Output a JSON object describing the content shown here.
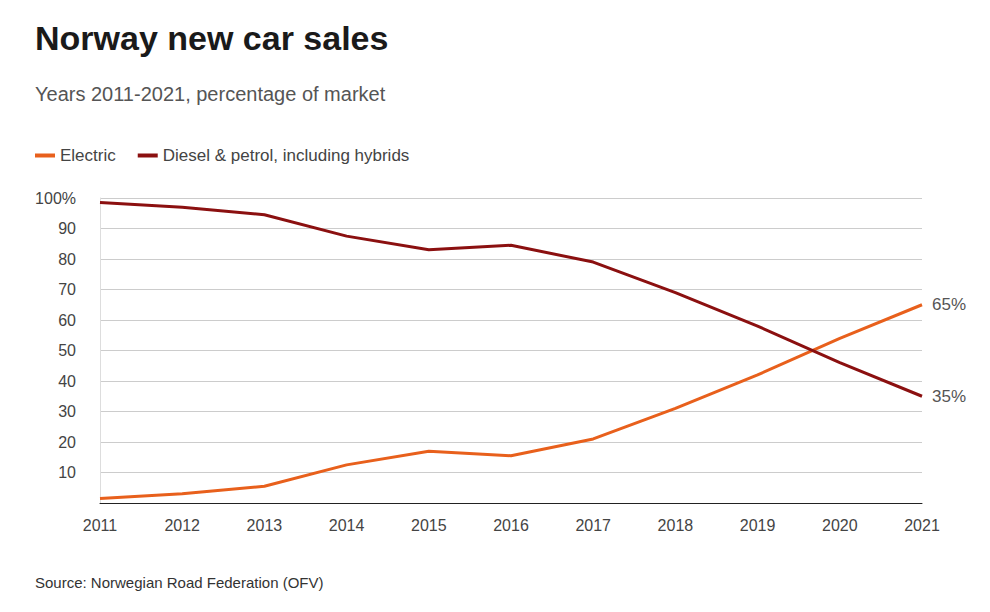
{
  "chart_data": {
    "type": "line",
    "title": "Norway new car sales",
    "subtitle": "Years 2011-2021, percentage of market",
    "source": "Source: Norwegian Road Federation (OFV)",
    "categories": [
      "2011",
      "2012",
      "2013",
      "2014",
      "2015",
      "2016",
      "2017",
      "2018",
      "2019",
      "2020",
      "2021"
    ],
    "series": [
      {
        "name": "Electric",
        "color": "#e8601c",
        "values": [
          1.5,
          3,
          5.5,
          12.5,
          17,
          15.5,
          21,
          31,
          42,
          54,
          65
        ],
        "value_labels": [
          null,
          null,
          null,
          null,
          null,
          null,
          null,
          null,
          null,
          null,
          "65%"
        ]
      },
      {
        "name": "Diesel & petrol, including hybrids",
        "color": "#8b1010",
        "values": [
          98.5,
          97,
          94.5,
          87.5,
          83,
          84.5,
          79,
          69,
          58,
          46,
          35
        ],
        "value_labels": [
          null,
          null,
          null,
          null,
          null,
          null,
          null,
          null,
          null,
          null,
          "35%"
        ]
      }
    ],
    "ylim": [
      0,
      100
    ],
    "yticks": [
      10,
      20,
      30,
      40,
      50,
      60,
      70,
      80,
      90,
      {
        "value": 100,
        "label": "100%"
      }
    ],
    "grid": true,
    "legend": "top-left"
  }
}
